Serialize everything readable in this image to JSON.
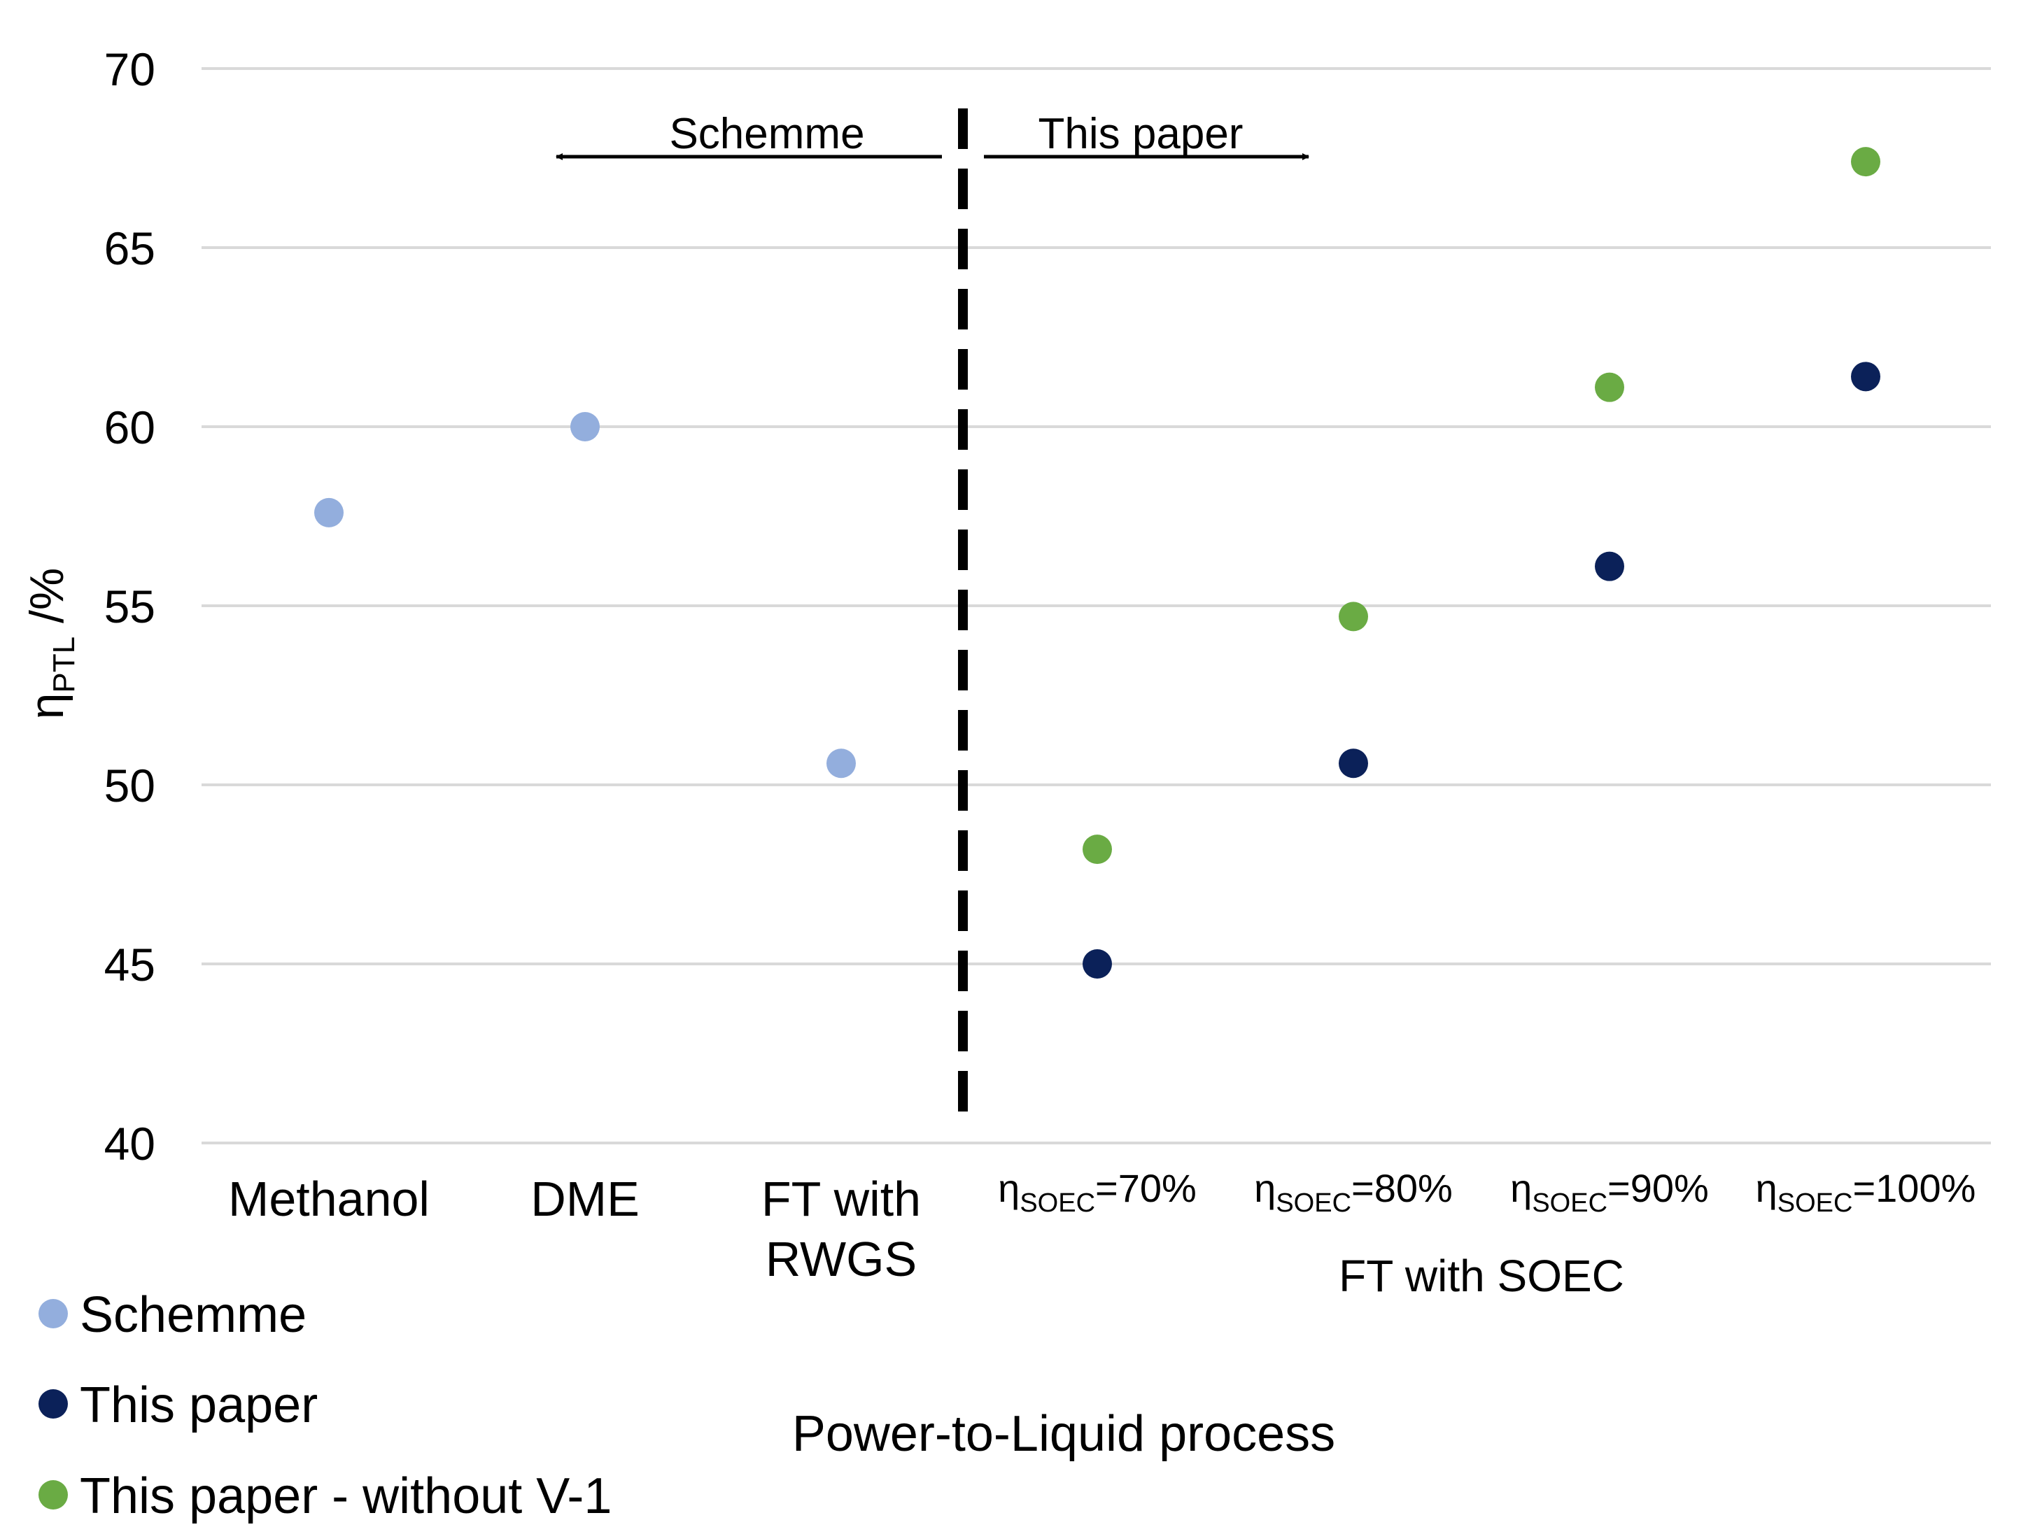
{
  "chart_data": {
    "type": "scatter",
    "title": "",
    "xlabel": "Power-to-Liquid process",
    "ylabel": {
      "base": "η",
      "sub": "PTL",
      "unit": " /%"
    },
    "ylim": [
      40,
      70
    ],
    "yticks": [
      "40",
      "45",
      "50",
      "55",
      "60",
      "65",
      "70"
    ],
    "grid": true,
    "legend_position": "bottom-left",
    "categories": [
      {
        "label": "Methanol"
      },
      {
        "label": "DME"
      },
      {
        "label": "FT with RWGS"
      },
      {
        "base": "η",
        "sub": "SOEC",
        "rest": "=70%"
      },
      {
        "base": "η",
        "sub": "SOEC",
        "rest": "=80%"
      },
      {
        "base": "η",
        "sub": "SOEC",
        "rest": "=90%"
      },
      {
        "base": "η",
        "sub": "SOEC",
        "rest": "=100%"
      }
    ],
    "category_label_lines": [
      [
        "Methanol"
      ],
      [
        "DME"
      ],
      [
        "FT with",
        "RWGS"
      ]
    ],
    "group_label": "FT with SOEC",
    "series": [
      {
        "name": "Schemme",
        "color": "#93aedd",
        "values": [
          57.6,
          60.0,
          50.6,
          null,
          null,
          null,
          null
        ]
      },
      {
        "name": "This paper",
        "color": "#0b2159",
        "values": [
          null,
          null,
          null,
          45.0,
          50.6,
          56.1,
          61.4
        ]
      },
      {
        "name": "This paper - without V-1",
        "color": "#6aab44",
        "values": [
          null,
          null,
          null,
          48.2,
          54.7,
          61.1,
          67.4
        ]
      }
    ],
    "annotations": {
      "left": "Schemme",
      "right": "This paper"
    }
  }
}
